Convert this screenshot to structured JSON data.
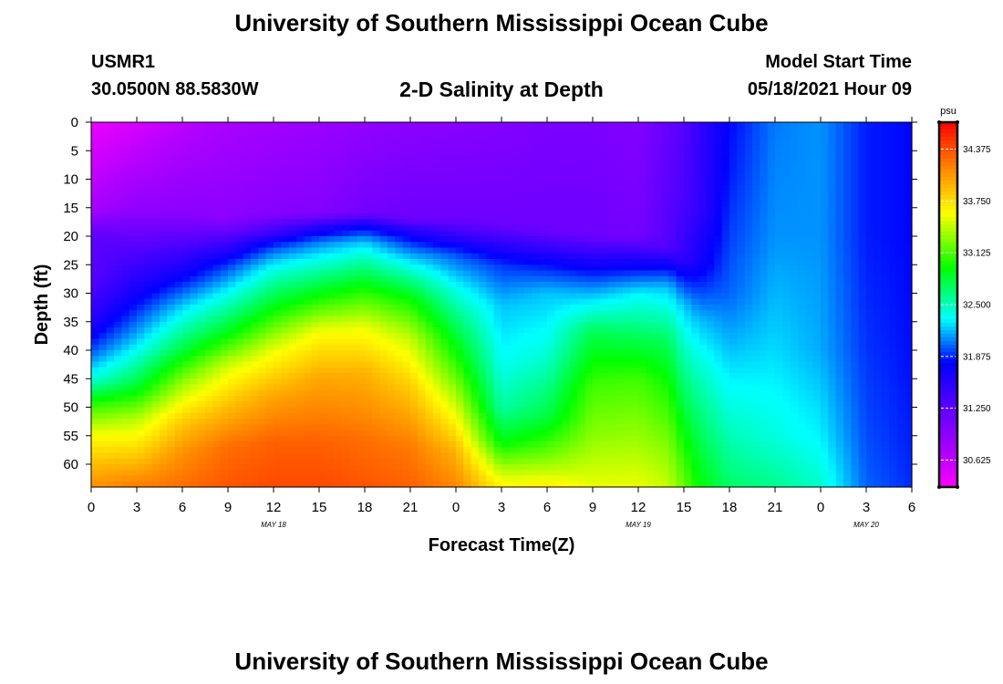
{
  "page_title": "University of Southern Mississippi Ocean Cube",
  "footer_title": "University of Southern Mississippi Ocean Cube",
  "station": {
    "id": "USMR1",
    "coordinates": "30.0500N  88.5830W"
  },
  "model": {
    "label": "Model Start Time",
    "start": "05/18/2021 Hour 09"
  },
  "chart_data": {
    "type": "heatmap",
    "title": "2-D Salinity at Depth",
    "xlabel": "Forecast Time(Z)",
    "ylabel": "Depth (ft)",
    "x_ticks": [
      "0",
      "3",
      "6",
      "9",
      "12",
      "15",
      "18",
      "21",
      "0",
      "3",
      "6",
      "9",
      "12",
      "15",
      "18",
      "21",
      "0",
      "3",
      "6"
    ],
    "x_range_hours": [
      0,
      54
    ],
    "date_labels": [
      {
        "text": "MAY 18",
        "hour": 12
      },
      {
        "text": "MAY 19",
        "hour": 36
      },
      {
        "text": "MAY 20",
        "hour": 51
      }
    ],
    "y_ticks": [
      0,
      5,
      10,
      15,
      20,
      25,
      30,
      35,
      40,
      45,
      50,
      55,
      60
    ],
    "y_range_ft": [
      0,
      64
    ],
    "colorbar": {
      "unit": "psu",
      "min": 30.3,
      "max": 34.7,
      "tick_labels": [
        "34.375",
        "33.750",
        "33.125",
        "32.500",
        "31.875",
        "31.250",
        "30.625"
      ],
      "tick_values": [
        34.375,
        33.75,
        33.125,
        32.5,
        31.875,
        31.25,
        30.625
      ]
    },
    "profile_hours": [
      0,
      3,
      6,
      9,
      12,
      15,
      18,
      21,
      24,
      27,
      30,
      33,
      36,
      38,
      39,
      40,
      42,
      45,
      48,
      51,
      54
    ],
    "profiles": [
      [
        [
          0,
          30.4
        ],
        [
          15,
          30.75
        ],
        [
          20,
          31.25
        ],
        [
          28,
          31.3
        ],
        [
          35,
          31.6
        ],
        [
          40,
          31.95
        ],
        [
          45,
          32.4
        ],
        [
          50,
          33.1
        ],
        [
          55,
          33.6
        ],
        [
          62,
          34.0
        ],
        [
          64,
          34.1
        ]
      ],
      [
        [
          0,
          30.5
        ],
        [
          15,
          30.9
        ],
        [
          21,
          31.25
        ],
        [
          30,
          31.7
        ],
        [
          38,
          32.2
        ],
        [
          46,
          32.8
        ],
        [
          52,
          33.4
        ],
        [
          58,
          33.8
        ],
        [
          64,
          34.2
        ]
      ],
      [
        [
          0,
          30.65
        ],
        [
          16,
          30.95
        ],
        [
          21,
          31.3
        ],
        [
          27,
          31.75
        ],
        [
          32,
          32.2
        ],
        [
          40,
          32.8
        ],
        [
          46,
          33.35
        ],
        [
          52,
          33.8
        ],
        [
          58,
          34.1
        ],
        [
          64,
          34.25
        ]
      ],
      [
        [
          0,
          30.75
        ],
        [
          17,
          30.95
        ],
        [
          20,
          31.3
        ],
        [
          25,
          31.9
        ],
        [
          30,
          32.35
        ],
        [
          37,
          32.9
        ],
        [
          43,
          33.5
        ],
        [
          50,
          33.9
        ],
        [
          57,
          34.25
        ],
        [
          64,
          34.35
        ]
      ],
      [
        [
          0,
          30.8
        ],
        [
          16,
          30.98
        ],
        [
          19,
          31.4
        ],
        [
          22,
          31.95
        ],
        [
          26,
          32.4
        ],
        [
          33,
          32.95
        ],
        [
          40,
          33.55
        ],
        [
          48,
          34.0
        ],
        [
          56,
          34.3
        ],
        [
          64,
          34.4
        ]
      ],
      [
        [
          0,
          30.85
        ],
        [
          16,
          31.0
        ],
        [
          18,
          31.5
        ],
        [
          21,
          32.05
        ],
        [
          25,
          32.45
        ],
        [
          31,
          33.0
        ],
        [
          37,
          33.6
        ],
        [
          45,
          34.0
        ],
        [
          56,
          34.3
        ],
        [
          64,
          34.4
        ]
      ],
      [
        [
          0,
          30.9
        ],
        [
          16,
          31.1
        ],
        [
          18,
          31.7
        ],
        [
          21,
          32.2
        ],
        [
          25,
          32.6
        ],
        [
          30,
          33.05
        ],
        [
          36,
          33.55
        ],
        [
          44,
          33.95
        ],
        [
          56,
          34.25
        ],
        [
          64,
          34.35
        ]
      ],
      [
        [
          0,
          30.95
        ],
        [
          17,
          31.15
        ],
        [
          19,
          31.6
        ],
        [
          22,
          32.0
        ],
        [
          26,
          32.45
        ],
        [
          31,
          32.95
        ],
        [
          38,
          33.45
        ],
        [
          47,
          33.85
        ],
        [
          57,
          34.2
        ],
        [
          64,
          34.3
        ]
      ],
      [
        [
          0,
          30.97
        ],
        [
          17,
          31.15
        ],
        [
          20,
          31.5
        ],
        [
          23,
          31.95
        ],
        [
          29,
          32.35
        ],
        [
          36,
          32.75
        ],
        [
          44,
          33.15
        ],
        [
          51,
          33.55
        ],
        [
          58,
          33.95
        ],
        [
          64,
          34.15
        ]
      ],
      [
        [
          0,
          31.0
        ],
        [
          18,
          31.15
        ],
        [
          21,
          31.5
        ],
        [
          25,
          31.9
        ],
        [
          32,
          32.2
        ],
        [
          42,
          32.35
        ],
        [
          50,
          32.55
        ],
        [
          56,
          32.9
        ],
        [
          61,
          33.4
        ],
        [
          64,
          33.65
        ]
      ],
      [
        [
          0,
          31.05
        ],
        [
          19,
          31.15
        ],
        [
          22,
          31.5
        ],
        [
          26,
          31.9
        ],
        [
          30,
          32.2
        ],
        [
          40,
          32.4
        ],
        [
          52,
          32.8
        ],
        [
          58,
          33.2
        ],
        [
          62,
          33.5
        ],
        [
          64,
          33.7
        ]
      ],
      [
        [
          0,
          31.05
        ],
        [
          20,
          31.15
        ],
        [
          23,
          31.5
        ],
        [
          27,
          31.9
        ],
        [
          31,
          32.25
        ],
        [
          37,
          32.75
        ],
        [
          46,
          33.1
        ],
        [
          55,
          33.3
        ],
        [
          64,
          33.55
        ]
      ],
      [
        [
          0,
          31.0
        ],
        [
          20,
          31.1
        ],
        [
          23,
          31.5
        ],
        [
          26,
          31.85
        ],
        [
          30,
          32.3
        ],
        [
          38,
          32.75
        ],
        [
          45,
          33.1
        ],
        [
          56,
          33.35
        ],
        [
          64,
          33.55
        ]
      ],
      [
        [
          0,
          31.2
        ],
        [
          10,
          31.25
        ],
        [
          22,
          31.3
        ],
        [
          25,
          31.75
        ],
        [
          29,
          32.2
        ],
        [
          38,
          32.7
        ],
        [
          47,
          33.0
        ],
        [
          56,
          33.25
        ],
        [
          64,
          33.45
        ]
      ],
      [
        [
          0,
          31.3
        ],
        [
          12,
          31.35
        ],
        [
          24,
          31.5
        ],
        [
          27,
          31.8
        ],
        [
          32,
          32.2
        ],
        [
          42,
          32.55
        ],
        [
          52,
          32.85
        ],
        [
          60,
          33.1
        ],
        [
          64,
          33.2
        ]
      ],
      [
        [
          0,
          31.5
        ],
        [
          15,
          31.5
        ],
        [
          25,
          31.7
        ],
        [
          29,
          31.9
        ],
        [
          35,
          32.2
        ],
        [
          45,
          32.5
        ],
        [
          55,
          32.75
        ],
        [
          64,
          32.95
        ]
      ],
      [
        [
          0,
          31.8
        ],
        [
          10,
          31.85
        ],
        [
          30,
          32.0
        ],
        [
          45,
          32.3
        ],
        [
          55,
          32.5
        ],
        [
          64,
          32.7
        ]
      ],
      [
        [
          0,
          32.05
        ],
        [
          20,
          32.1
        ],
        [
          40,
          32.25
        ],
        [
          55,
          32.4
        ],
        [
          64,
          32.6
        ]
      ],
      [
        [
          0,
          32.1
        ],
        [
          20,
          32.1
        ],
        [
          40,
          32.15
        ],
        [
          55,
          32.3
        ],
        [
          64,
          32.45
        ]
      ],
      [
        [
          0,
          31.85
        ],
        [
          20,
          31.85
        ],
        [
          40,
          31.9
        ],
        [
          55,
          31.95
        ],
        [
          64,
          32.0
        ]
      ],
      [
        [
          0,
          31.8
        ],
        [
          20,
          31.8
        ],
        [
          40,
          31.82
        ],
        [
          55,
          31.85
        ],
        [
          64,
          31.88
        ]
      ]
    ]
  }
}
